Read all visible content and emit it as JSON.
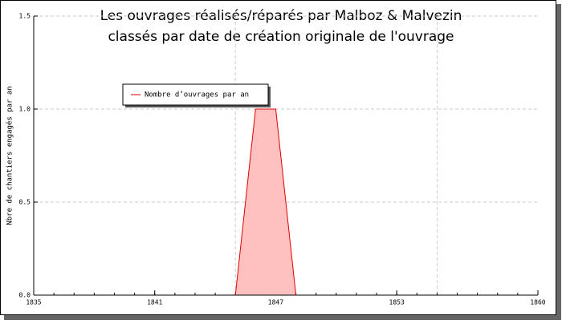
{
  "chart_data": {
    "type": "area",
    "title": "Les ouvrages réalisés/réparés par Malboz & Malvezin",
    "subtitle": "classés par date de création originale de l'ouvrage",
    "y_label": "Nbre de chantiers engagés par an",
    "x": [
      1845,
      1846,
      1847,
      1848
    ],
    "series": [
      {
        "name": "Nombre d’ouvrages par an",
        "color": "#e00000",
        "fill": "#ffc0c0",
        "values": [
          0,
          1,
          1,
          0
        ]
      }
    ],
    "xlim": [
      1835,
      1860
    ],
    "xticks": [
      1835,
      1841,
      1847,
      1853,
      1860
    ],
    "xgrid": [
      1845,
      1855
    ],
    "ylim": [
      0,
      1.5
    ],
    "yticks": [
      {
        "value": 0,
        "label": "0.0"
      },
      0.5,
      {
        "value": 1,
        "label": "1.0"
      },
      1.5
    ],
    "grid": true,
    "legend": "top-left"
  }
}
